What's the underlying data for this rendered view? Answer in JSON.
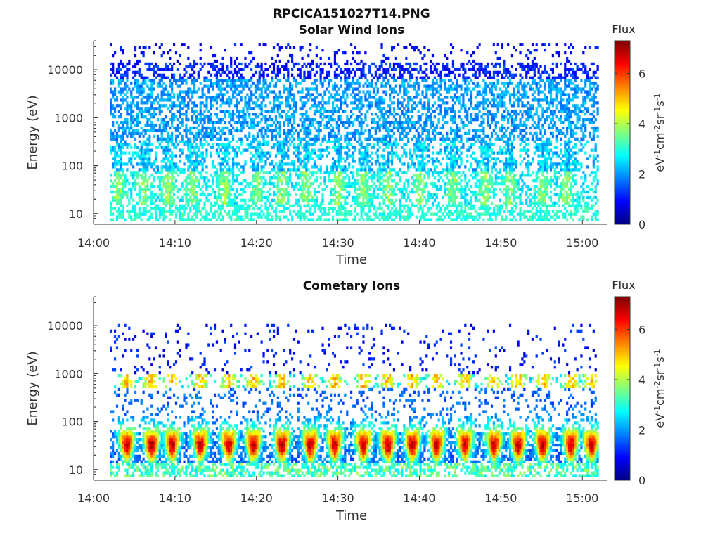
{
  "figure": {
    "title": "RPCICA151027T14.PNG"
  },
  "chart_data": [
    {
      "type": "heatmap",
      "title": "Solar Wind Ions",
      "xlabel": "Time",
      "ylabel": "Energy (eV)",
      "x_ticks": [
        "14:00",
        "14:10",
        "14:20",
        "14:30",
        "14:40",
        "14:50",
        "15:00"
      ],
      "x_range": [
        "14:00",
        "15:03"
      ],
      "data_time_range": [
        "14:02",
        "15:02"
      ],
      "y_ticks": [
        10,
        100,
        1000,
        10000
      ],
      "y_scale": "log",
      "ylim": [
        6,
        40000
      ],
      "colorbar": {
        "label_top": "Flux",
        "label": "eV-1cm-2sr-1s-1",
        "ticks": [
          0,
          2,
          4,
          6
        ],
        "range": [
          0,
          7.3
        ],
        "colormap": "jet"
      },
      "description_of_pattern": "sparse 1-3 flux above 200 eV, 2-3 near 10-60 eV",
      "bursts_times_min": [
        3,
        6,
        9,
        12,
        16,
        20,
        23,
        26,
        30,
        33,
        36,
        40,
        44,
        48,
        51,
        55,
        58
      ]
    },
    {
      "type": "heatmap",
      "title": "Cometary Ions",
      "xlabel": "Time",
      "ylabel": "Energy (eV)",
      "x_ticks": [
        "14:00",
        "14:10",
        "14:20",
        "14:30",
        "14:40",
        "14:50",
        "15:00"
      ],
      "x_range": [
        "14:00",
        "15:03"
      ],
      "data_time_range": [
        "14:02",
        "15:02"
      ],
      "y_ticks": [
        10,
        100,
        1000,
        10000
      ],
      "y_scale": "log",
      "ylim": [
        6,
        40000
      ],
      "colorbar": {
        "label_top": "Flux",
        "label": "eV-1cm-2sr-1s-1",
        "ticks": [
          0,
          2,
          4,
          6
        ],
        "range": [
          0,
          7.3
        ],
        "colormap": "jet"
      },
      "description_of_pattern": "periodic bursts peaking 5-6.5 at 20-40 eV",
      "bursts_times_min": [
        4,
        7,
        9.5,
        13,
        16.5,
        19.5,
        23,
        26.5,
        29.5,
        33,
        36,
        39,
        42,
        45.5,
        49,
        52,
        55,
        58.5,
        61
      ]
    }
  ]
}
